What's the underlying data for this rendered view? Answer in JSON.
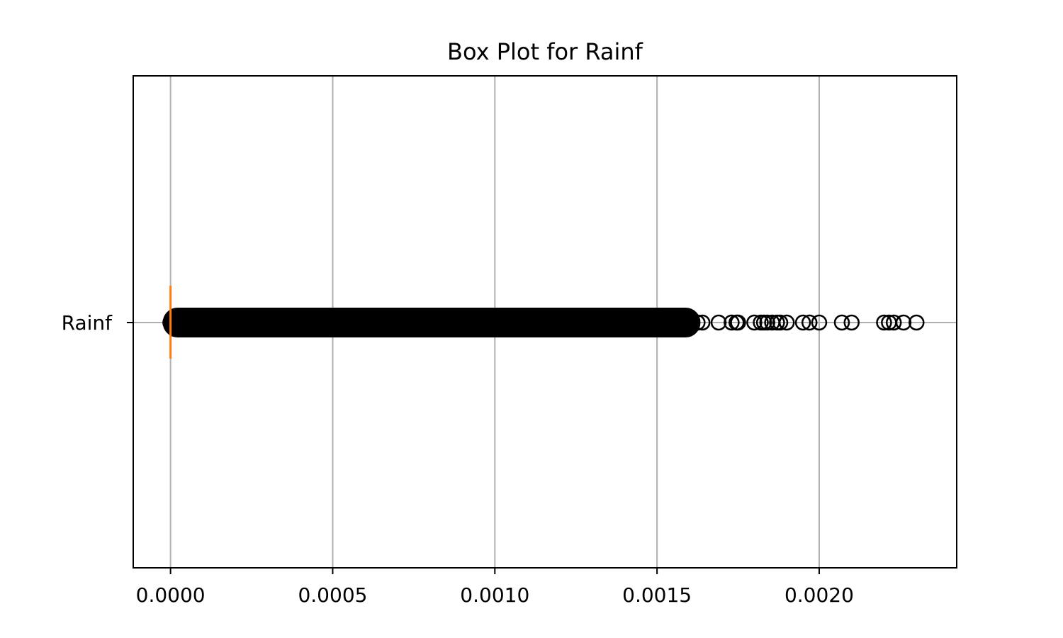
{
  "chart_data": {
    "type": "box",
    "orientation": "horizontal",
    "title": "Box Plot for Rainf",
    "xlabel": "",
    "ylabel": "",
    "xlim": [
      -0.000115,
      0.002424
    ],
    "x_ticks": [
      "0.0000",
      "0.0005",
      "0.0010",
      "0.0015",
      "0.0020"
    ],
    "x_tick_values": [
      0,
      0.0005,
      0.001,
      0.0015,
      0.002
    ],
    "grid": true,
    "series": [
      {
        "category": "Rainf",
        "min": 0,
        "q1": 0,
        "median": 0,
        "q3": 0,
        "max": 0,
        "dense_outlier_range": [
          0,
          0.00161
        ],
        "outliers": [
          0.001625,
          0.00164,
          0.00169,
          0.00173,
          0.001745,
          0.00175,
          0.0018,
          0.00182,
          0.00183,
          0.00184,
          0.001855,
          0.00187,
          0.00188,
          0.0019,
          0.00195,
          0.00197,
          0.002,
          0.00207,
          0.0021,
          0.0022,
          0.002215,
          0.00223,
          0.00226,
          0.0023
        ]
      }
    ],
    "colors": {
      "median": "#ff7f0e",
      "outlier_edge": "#000000",
      "grid": "#b0b0b0",
      "axes": "#000000"
    }
  }
}
